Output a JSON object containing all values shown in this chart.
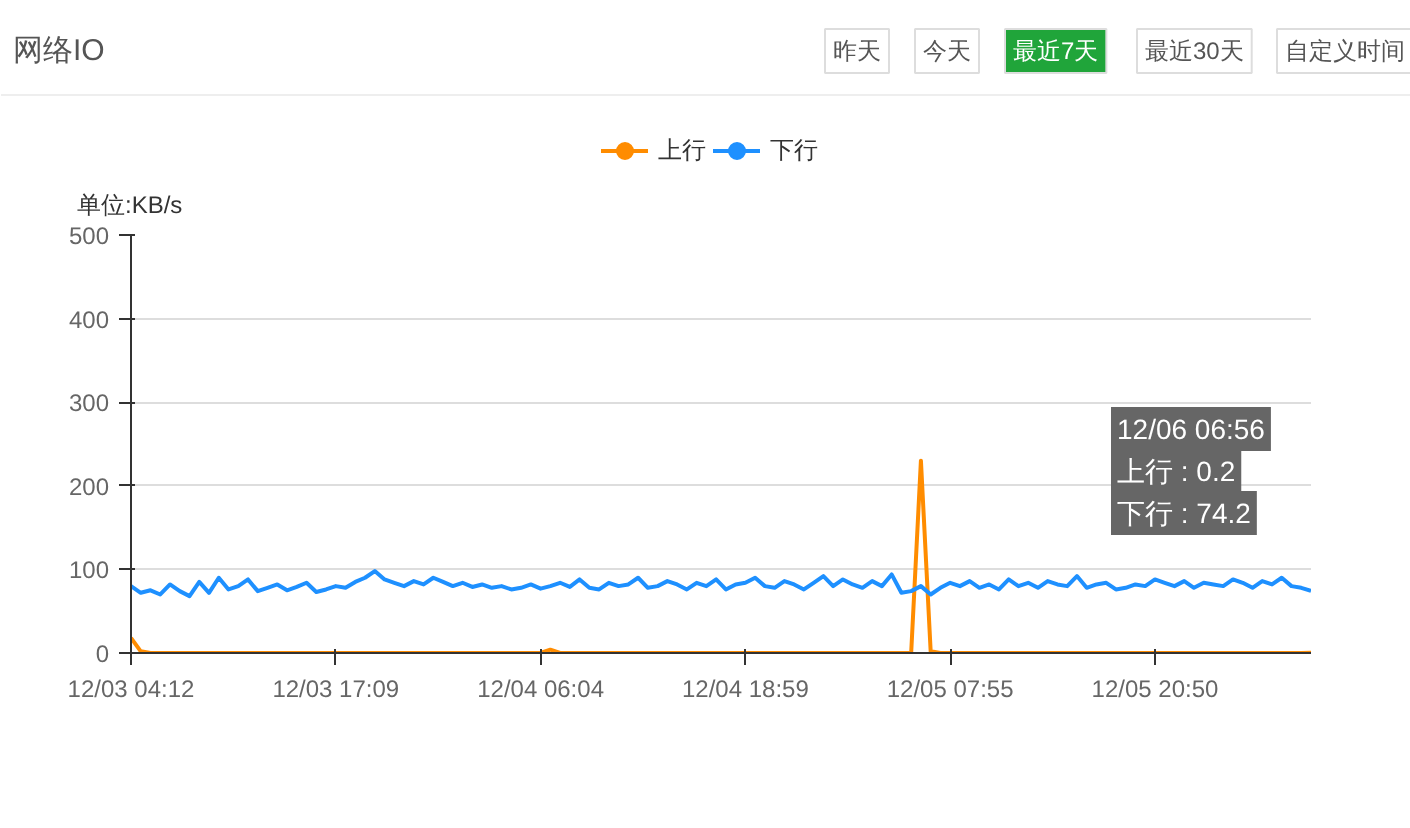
{
  "chart_data": {
    "type": "line",
    "title": "网络IO",
    "ylabel": "单位:KB/s",
    "categories": [
      "12/03 04:12",
      null,
      null,
      null,
      null,
      null,
      null,
      null,
      null,
      null,
      null,
      null,
      null,
      null,
      null,
      null,
      null,
      null,
      null,
      null,
      null,
      "12/03 17:09",
      null,
      null,
      null,
      null,
      null,
      null,
      null,
      null,
      null,
      null,
      null,
      null,
      null,
      null,
      null,
      null,
      null,
      null,
      null,
      null,
      "12/04 06:04",
      null,
      null,
      null,
      null,
      null,
      null,
      null,
      null,
      null,
      null,
      null,
      null,
      null,
      null,
      null,
      null,
      null,
      null,
      null,
      null,
      "12/04 18:59",
      null,
      null,
      null,
      null,
      null,
      null,
      null,
      null,
      null,
      null,
      null,
      null,
      null,
      null,
      null,
      null,
      null,
      null,
      null,
      null,
      "12/05 07:55",
      null,
      null,
      null,
      null,
      null,
      null,
      null,
      null,
      null,
      null,
      null,
      null,
      null,
      null,
      null,
      null,
      null,
      null,
      null,
      null,
      "12/05 20:50",
      null,
      null,
      null,
      null,
      null,
      null,
      null,
      null,
      null,
      null,
      null,
      null,
      null,
      null,
      null,
      null
    ],
    "series": [
      {
        "name": "上行",
        "color": "#ff8c00",
        "values": [
          18,
          2,
          0,
          0,
          0,
          0,
          0,
          0,
          0,
          0,
          0,
          0,
          0,
          0,
          0,
          0,
          0,
          0,
          0,
          0,
          0,
          0,
          0,
          0,
          0,
          0,
          0,
          0,
          0,
          0,
          0,
          0,
          0,
          0,
          0,
          0,
          0,
          0,
          0,
          0,
          0,
          0,
          0,
          4,
          0,
          0,
          0,
          0,
          0,
          0,
          0,
          0,
          0,
          0,
          0,
          0,
          0,
          0,
          0,
          0,
          0,
          0,
          0,
          0,
          0,
          0,
          0,
          0,
          0,
          0,
          0,
          0,
          0,
          0,
          0,
          0,
          0,
          0,
          0,
          0,
          0,
          230,
          2,
          0,
          0,
          0,
          0,
          0,
          0,
          0,
          0,
          0,
          0,
          0,
          0,
          0,
          0,
          0,
          0,
          0,
          0,
          0,
          0,
          0,
          0,
          0,
          0,
          0,
          0,
          0,
          0,
          0,
          0,
          0,
          0,
          0,
          0,
          0,
          0,
          0,
          0,
          0.2
        ]
      },
      {
        "name": "下行",
        "color": "#1e90ff",
        "values": [
          80,
          72,
          75,
          70,
          82,
          74,
          68,
          85,
          72,
          90,
          76,
          80,
          88,
          74,
          78,
          82,
          75,
          79,
          84,
          73,
          76,
          80,
          78,
          85,
          90,
          98,
          88,
          84,
          80,
          86,
          82,
          90,
          85,
          80,
          84,
          79,
          82,
          78,
          80,
          76,
          78,
          82,
          77,
          80,
          84,
          79,
          88,
          78,
          76,
          84,
          80,
          82,
          90,
          78,
          80,
          86,
          82,
          76,
          84,
          80,
          88,
          76,
          82,
          84,
          90,
          80,
          78,
          86,
          82,
          76,
          84,
          92,
          80,
          88,
          82,
          78,
          86,
          80,
          94,
          72,
          74,
          80,
          70,
          78,
          84,
          80,
          86,
          78,
          82,
          76,
          88,
          80,
          84,
          78,
          86,
          82,
          80,
          92,
          78,
          82,
          84,
          76,
          78,
          82,
          80,
          88,
          84,
          80,
          86,
          78,
          84,
          82,
          80,
          88,
          84,
          78,
          86,
          82,
          90,
          80,
          78,
          74.2
        ]
      }
    ],
    "ylim": [
      0,
      500
    ],
    "yticks": [
      0,
      100,
      200,
      300,
      400,
      500
    ],
    "grid": "y",
    "legend": "top",
    "marker": "none",
    "line_style": "solid",
    "annotations": [
      "昨天",
      "今天",
      "最近7天",
      "最近30天",
      "自定义时间",
      "12/06 06:56",
      "上行 : 0.2",
      "下行 : 74.2"
    ]
  }
}
